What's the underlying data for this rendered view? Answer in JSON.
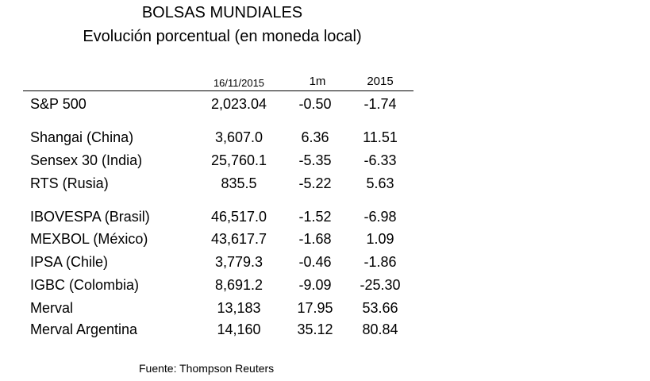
{
  "title": "BOLSAS MUNDIALES",
  "subtitle": "Evolución porcentual (en moneda local)",
  "headers": {
    "date": "16/11/2015",
    "month": "1m",
    "year": "2015"
  },
  "rows": [
    {
      "name": "S&P 500",
      "value": "2,023.04",
      "m1": "-0.50",
      "y2015": "-1.74"
    },
    {
      "name": "Shangai (China)",
      "value": "3,607.0",
      "m1": "6.36",
      "y2015": "11.51"
    },
    {
      "name": "Sensex 30 (India)",
      "value": "25,760.1",
      "m1": "-5.35",
      "y2015": "-6.33"
    },
    {
      "name": "RTS (Rusia)",
      "value": "835.5",
      "m1": "-5.22",
      "y2015": "5.63"
    },
    {
      "name": "IBOVESPA (Brasil)",
      "value": "46,517.0",
      "m1": "-1.52",
      "y2015": "-6.98"
    },
    {
      "name": "MEXBOL (México)",
      "value": "43,617.7",
      "m1": "-1.68",
      "y2015": "1.09"
    },
    {
      "name": "IPSA (Chile)",
      "value": "3,779.3",
      "m1": "-0.46",
      "y2015": "-1.86"
    },
    {
      "name": "IGBC (Colombia)",
      "value": "8,691.2",
      "m1": "-9.09",
      "y2015": "-25.30"
    },
    {
      "name": "Merval",
      "value": "13,183",
      "m1": "17.95",
      "y2015": "53.66"
    },
    {
      "name": "Merval Argentina",
      "value": "14,160",
      "m1": "35.12",
      "y2015": "80.84"
    }
  ],
  "source": "Fuente: Thompson Reuters"
}
